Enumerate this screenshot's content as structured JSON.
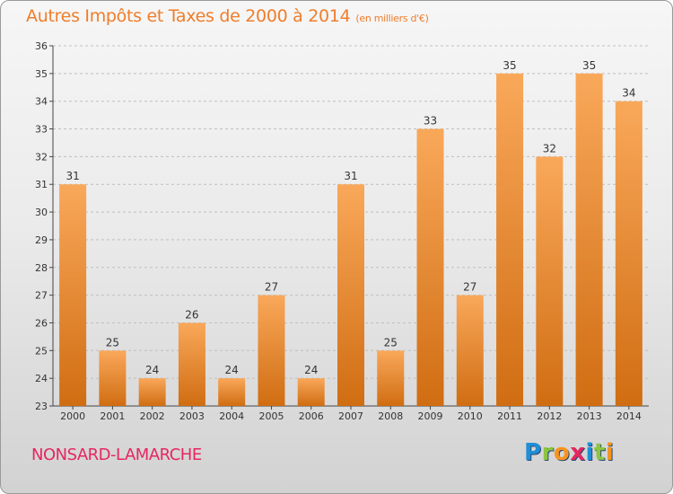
{
  "colors": {
    "title": "#ef7d2b",
    "city": "#e6265f",
    "bar_light": "#f9a85a",
    "bar_dark": "#d06d12",
    "grid": "#bfbfbf"
  },
  "title": "Autres Impôts et Taxes de 2000 à 2014",
  "title_unit": "(en milliers d'€)",
  "city": "NONSARD-LAMARCHE",
  "logo": {
    "letters": [
      "P",
      "r",
      "o",
      "x",
      "i",
      "t",
      "i"
    ],
    "colors": [
      "#1f8fd6",
      "#8cc63f",
      "#f7941d",
      "#e6265f",
      "#1f8fd6",
      "#8cc63f",
      "#f7941d"
    ]
  },
  "chart_data": {
    "type": "bar",
    "categories": [
      "2000",
      "2001",
      "2002",
      "2003",
      "2004",
      "2005",
      "2006",
      "2007",
      "2008",
      "2009",
      "2010",
      "2011",
      "2012",
      "2013",
      "2014"
    ],
    "values": [
      31,
      25,
      24,
      26,
      24,
      27,
      24,
      31,
      25,
      33,
      27,
      35,
      32,
      35,
      34
    ],
    "ylim": [
      23,
      36
    ],
    "yticks": [
      23,
      24,
      25,
      26,
      27,
      28,
      29,
      30,
      31,
      32,
      33,
      34,
      35,
      36
    ],
    "grid": "horizontal dashed",
    "data_labels": true
  }
}
